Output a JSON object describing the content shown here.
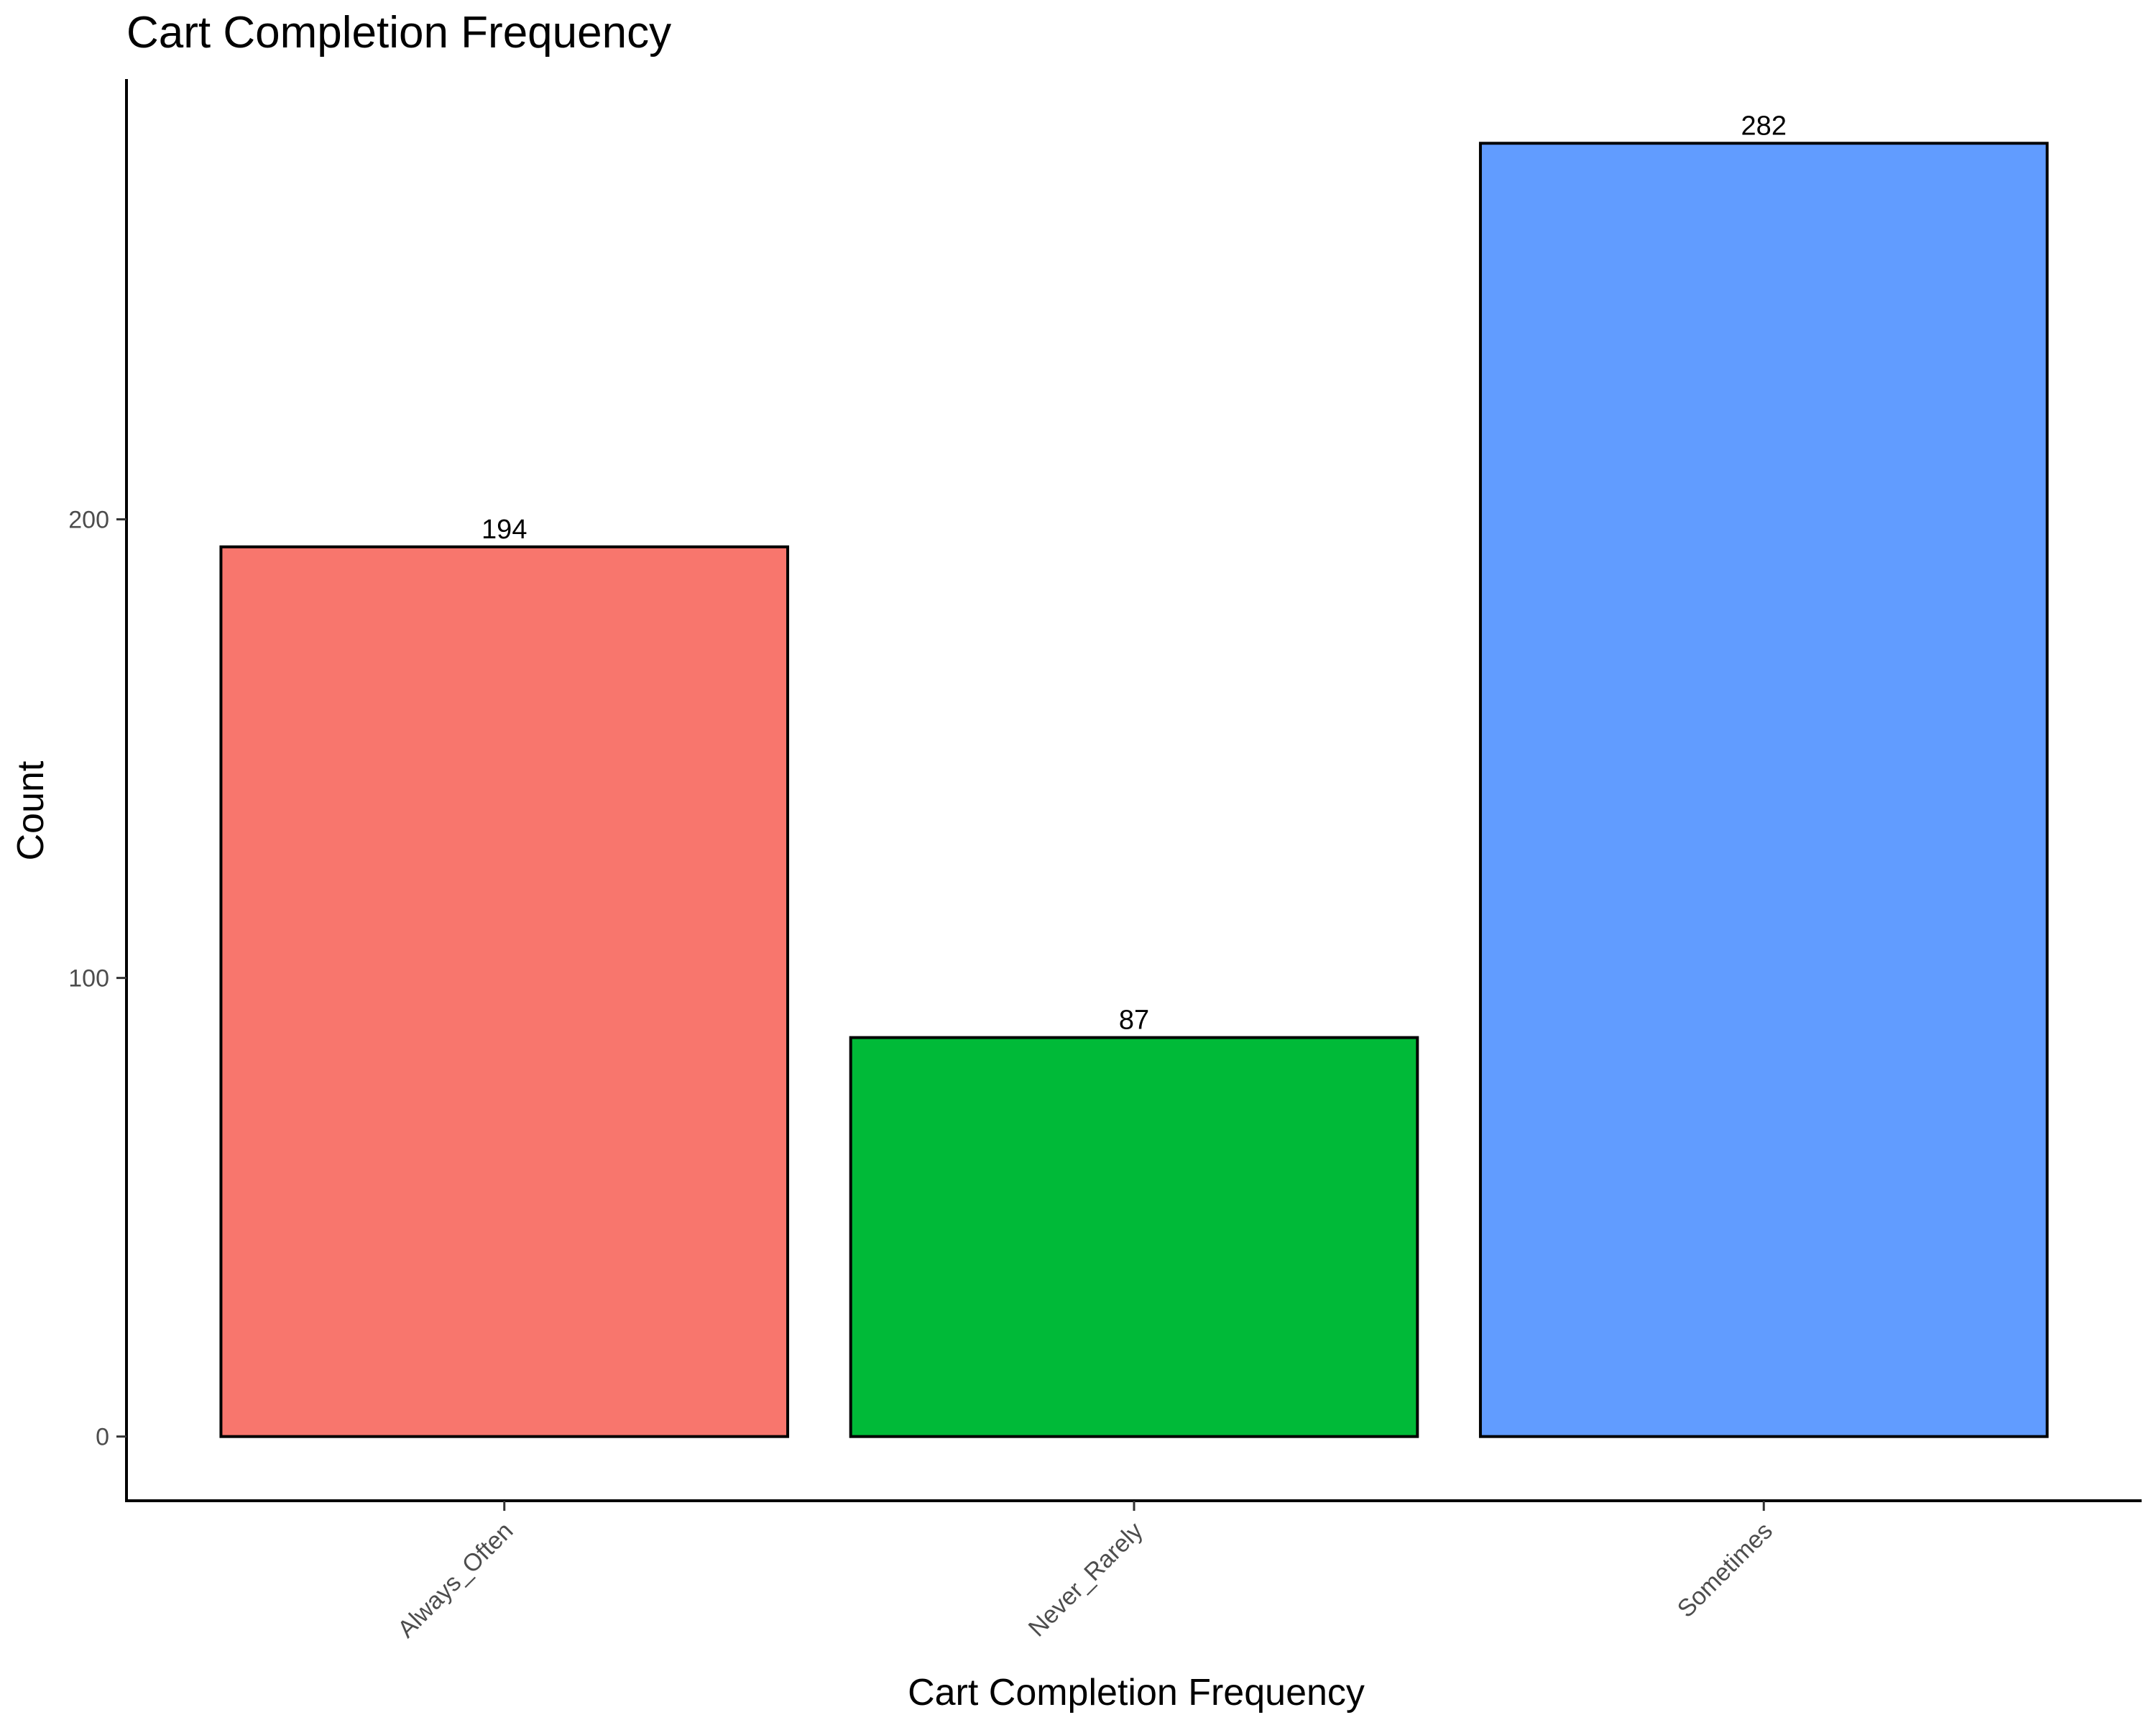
{
  "chart_data": {
    "type": "bar",
    "title": "Cart Completion Frequency",
    "xlabel": "Cart Completion Frequency",
    "ylabel": "Count",
    "categories": [
      "Always_Often",
      "Never_Rarely",
      "Sometimes"
    ],
    "values": [
      194,
      87,
      282
    ],
    "data_labels": [
      "194",
      "87",
      "282"
    ],
    "colors": [
      "#F8766D",
      "#00BA38",
      "#619CFF"
    ],
    "yticks": [
      0,
      100,
      200
    ],
    "ytick_labels": [
      "0",
      "100",
      "200"
    ],
    "ylim": [
      -14,
      296
    ],
    "grid": false,
    "legend": "none"
  }
}
